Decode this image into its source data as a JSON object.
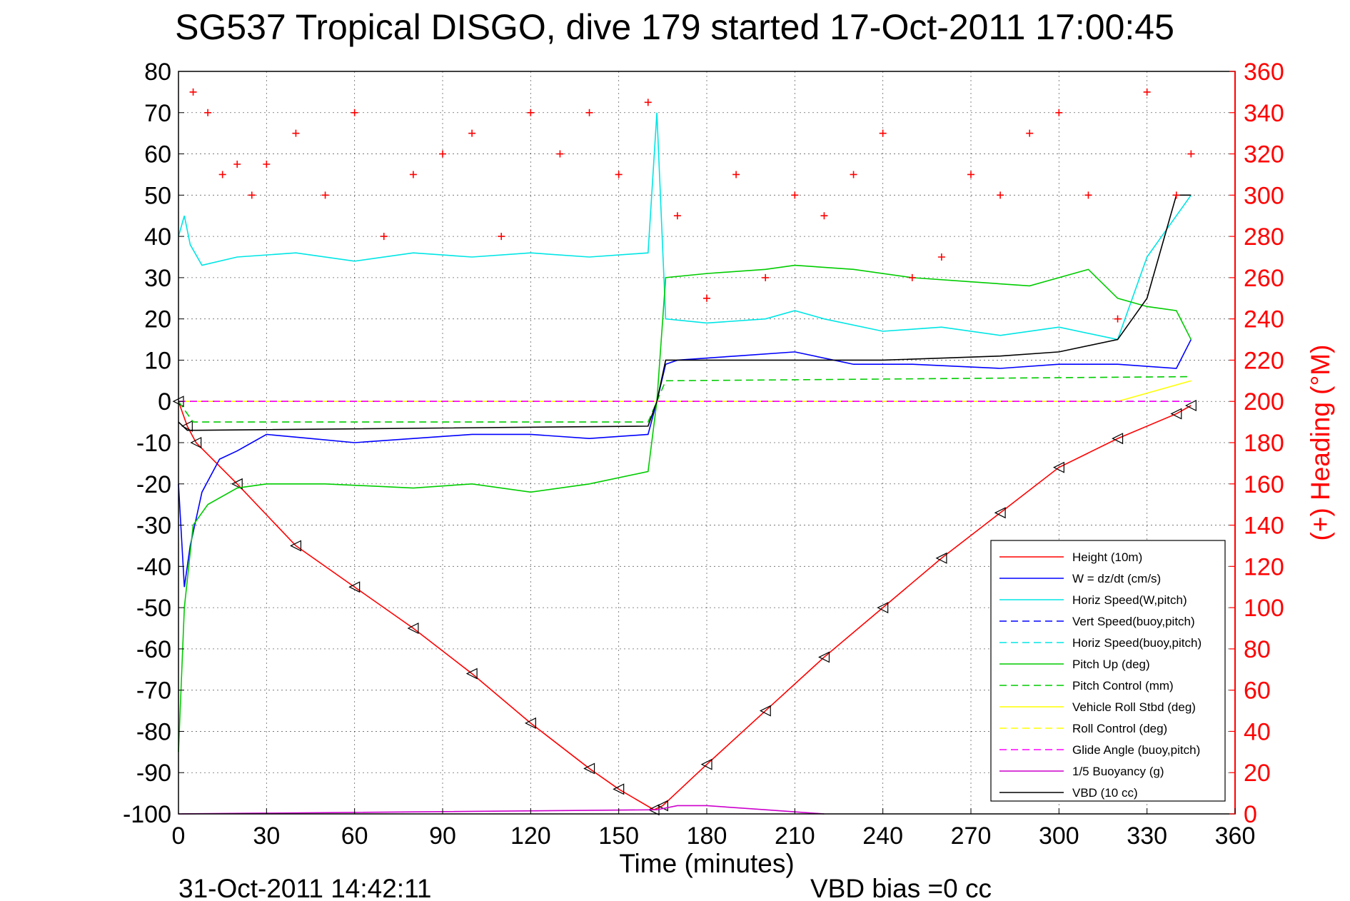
{
  "chart_data": {
    "type": "line",
    "title": "SG537 Tropical DISGO, dive 179 started 17-Oct-2011 17:00:45",
    "xlabel": "Time (minutes)",
    "ylabel": "",
    "ylabel_right": "(+) Heading (°M)",
    "xlim": [
      0,
      360
    ],
    "ylim": [
      -100,
      80
    ],
    "ylim_right": [
      0,
      360
    ],
    "xticks": [
      "0",
      "30",
      "60",
      "90",
      "120",
      "150",
      "180",
      "210",
      "240",
      "270",
      "300",
      "330",
      "360"
    ],
    "yticks": [
      "80",
      "70",
      "60",
      "50",
      "40",
      "30",
      "20",
      "10",
      "0",
      "-10",
      "-20",
      "-30",
      "-40",
      "-50",
      "-60",
      "-70",
      "-80",
      "-90",
      "-100"
    ],
    "yticks_right": [
      "360",
      "340",
      "320",
      "300",
      "280",
      "260",
      "240",
      "220",
      "200",
      "180",
      "160",
      "140",
      "120",
      "100",
      "80",
      "60",
      "40",
      "20",
      "0"
    ],
    "grid": true,
    "legend_position": "bottom-right",
    "footer_left": "31-Oct-2011 14:42:11",
    "footer_right": "VBD bias =0 cc",
    "series": [
      {
        "name": "Height (10m)",
        "color": "#ff0000",
        "style": "solid",
        "x": [
          0,
          3,
          6,
          20,
          40,
          60,
          80,
          100,
          120,
          140,
          150,
          162,
          165,
          180,
          200,
          220,
          240,
          260,
          280,
          300,
          320,
          340,
          345
        ],
        "y": [
          0,
          -6,
          -10,
          -20,
          -35,
          -45,
          -55,
          -66,
          -78,
          -89,
          -94,
          -99,
          -98,
          -88,
          -75,
          -62,
          -50,
          -38,
          -27,
          -16,
          -9,
          -3,
          -1
        ]
      },
      {
        "name": "W = dz/dt (cm/s)",
        "color": "#0000ff",
        "style": "solid",
        "x": [
          0,
          2,
          4,
          8,
          14,
          20,
          25,
          30,
          45,
          60,
          80,
          100,
          120,
          140,
          160,
          163,
          166,
          170,
          190,
          210,
          230,
          250,
          280,
          300,
          320,
          340,
          345
        ],
        "y": [
          -20,
          -45,
          -35,
          -22,
          -14,
          -12,
          -10,
          -8,
          -9,
          -10,
          -9,
          -8,
          -8,
          -9,
          -8,
          0,
          9,
          10,
          11,
          12,
          9,
          9,
          8,
          9,
          9,
          8,
          15
        ]
      },
      {
        "name": "Horiz Speed(W,pitch)",
        "color": "#00e5e5",
        "style": "solid",
        "x": [
          0,
          2,
          4,
          8,
          20,
          40,
          60,
          80,
          100,
          120,
          140,
          160,
          163,
          166,
          180,
          200,
          210,
          220,
          240,
          260,
          280,
          300,
          320,
          330,
          340,
          345
        ],
        "y": [
          40,
          45,
          38,
          33,
          35,
          36,
          34,
          36,
          35,
          36,
          35,
          36,
          70,
          20,
          19,
          20,
          22,
          20,
          17,
          18,
          16,
          18,
          15,
          35,
          45,
          50
        ]
      },
      {
        "name": "Vert Speed(buoy,pitch)",
        "color": "#0000ff",
        "style": "dashed",
        "x": [
          0,
          345
        ],
        "y": [
          0,
          0
        ]
      },
      {
        "name": "Horiz Speed(buoy,pitch)",
        "color": "#00e5e5",
        "style": "dashed",
        "x": [
          0,
          345
        ],
        "y": [
          0,
          0
        ]
      },
      {
        "name": "Pitch Up (deg)",
        "color": "#00cc00",
        "style": "solid",
        "x": [
          0,
          2,
          5,
          10,
          20,
          30,
          50,
          80,
          100,
          120,
          140,
          160,
          163,
          166,
          180,
          200,
          210,
          230,
          250,
          270,
          290,
          300,
          310,
          320,
          330,
          340,
          345
        ],
        "y": [
          -85,
          -50,
          -30,
          -25,
          -21,
          -20,
          -20,
          -21,
          -20,
          -22,
          -20,
          -17,
          0,
          30,
          31,
          32,
          33,
          32,
          30,
          29,
          28,
          30,
          32,
          25,
          23,
          22,
          15
        ]
      },
      {
        "name": "Pitch Control (mm)",
        "color": "#00cc00",
        "style": "dashed",
        "x": [
          0,
          5,
          160,
          163,
          166,
          345
        ],
        "y": [
          0,
          -5,
          -5,
          0,
          5,
          6
        ]
      },
      {
        "name": "Vehicle Roll Stbd (deg)",
        "color": "#ffff00",
        "style": "solid",
        "x": [
          0,
          40,
          80,
          120,
          160,
          200,
          240,
          280,
          320,
          345
        ],
        "y": [
          0,
          0,
          0,
          0,
          0,
          0,
          0,
          0,
          0,
          5
        ]
      },
      {
        "name": "Roll Control (deg)",
        "color": "#ffff00",
        "style": "dashed",
        "x": [
          0,
          345
        ],
        "y": [
          0,
          0
        ]
      },
      {
        "name": "Glide Angle (buoy,pitch)",
        "color": "#ff00ff",
        "style": "dashed",
        "x": [
          0,
          345
        ],
        "y": [
          0,
          0
        ]
      },
      {
        "name": "1/5 Buoyancy (g)",
        "color": "#cc00cc",
        "style": "solid",
        "x": [
          0,
          163,
          170,
          180,
          200,
          220
        ],
        "y": [
          -100,
          -99,
          -98,
          -98,
          -99,
          -100
        ]
      },
      {
        "name": "VBD (10 cc)",
        "color": "#000000",
        "style": "solid",
        "x": [
          0,
          3,
          6,
          160,
          163,
          166,
          240,
          280,
          300,
          320,
          330,
          340,
          345
        ],
        "y": [
          -5,
          -7,
          -7,
          -6,
          0,
          10,
          10,
          11,
          12,
          15,
          25,
          50,
          50
        ]
      },
      {
        "name": "(+) Heading (°M)",
        "color": "#ff0000",
        "style": "markers",
        "axis": "right",
        "x": [
          5,
          10,
          15,
          20,
          25,
          30,
          40,
          50,
          60,
          70,
          80,
          90,
          100,
          110,
          120,
          130,
          140,
          150,
          160,
          170,
          180,
          190,
          200,
          210,
          220,
          230,
          240,
          250,
          260,
          270,
          280,
          290,
          300,
          310,
          320,
          330,
          340,
          345
        ],
        "y": [
          350,
          340,
          310,
          315,
          300,
          315,
          330,
          300,
          340,
          280,
          310,
          320,
          330,
          280,
          340,
          320,
          340,
          310,
          345,
          290,
          250,
          310,
          260,
          300,
          290,
          310,
          330,
          260,
          270,
          310,
          300,
          330,
          340,
          300,
          240,
          350,
          300,
          320
        ]
      }
    ]
  }
}
